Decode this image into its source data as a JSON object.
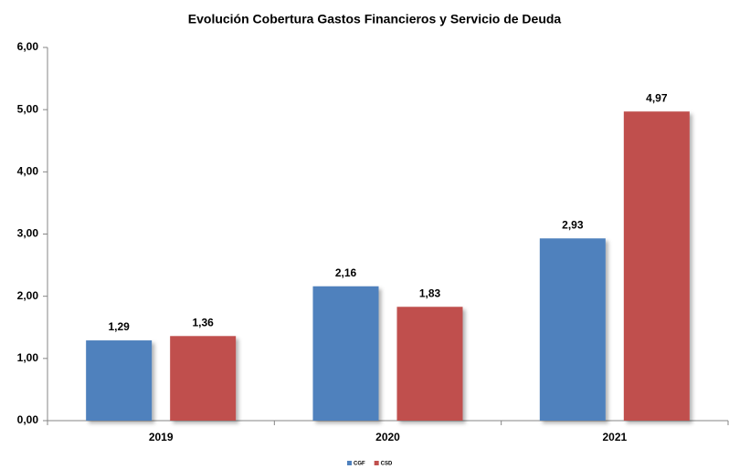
{
  "chart_data": {
    "type": "bar",
    "title": "Evolución Cobertura Gastos Financieros y Servicio de Deuda",
    "categories": [
      "2019",
      "2020",
      "2021"
    ],
    "series": [
      {
        "name": "CGF",
        "color": "#4f81bd",
        "values": [
          1.29,
          2.16,
          2.93
        ],
        "value_labels": [
          "1,29",
          "2,16",
          "2,93"
        ]
      },
      {
        "name": "CSD",
        "color": "#c0504d",
        "values": [
          1.36,
          1.83,
          4.97
        ],
        "value_labels": [
          "1,36",
          "1,83",
          "4,97"
        ]
      }
    ],
    "ylim": [
      0,
      6
    ],
    "yticks": [
      {
        "value": 0,
        "label": "0,00"
      },
      {
        "value": 1,
        "label": "1,00"
      },
      {
        "value": 2,
        "label": "2,00"
      },
      {
        "value": 3,
        "label": "3,00"
      },
      {
        "value": 4,
        "label": "4,00"
      },
      {
        "value": 5,
        "label": "5,00"
      },
      {
        "value": 6,
        "label": "6,00"
      }
    ],
    "legend": "bottom"
  }
}
